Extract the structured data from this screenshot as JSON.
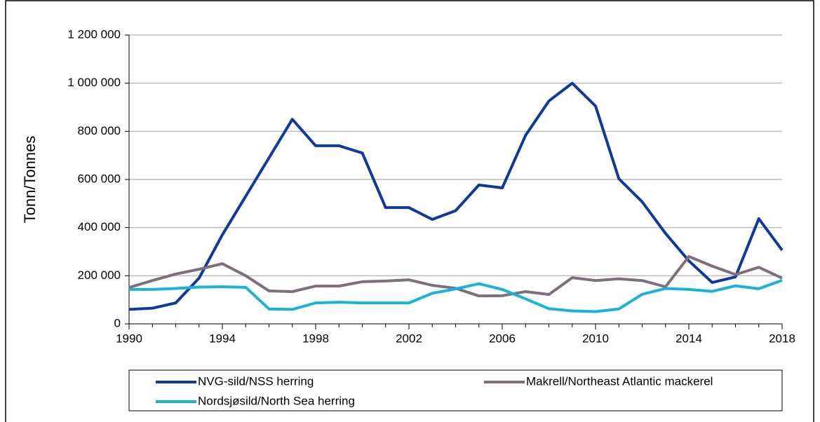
{
  "chart_data": {
    "type": "line",
    "y_label": "Tonn/Tonnes",
    "x": [
      1990,
      1991,
      1992,
      1993,
      1994,
      1995,
      1996,
      1997,
      1998,
      1999,
      2000,
      2001,
      2002,
      2003,
      2004,
      2005,
      2006,
      2007,
      2008,
      2009,
      2010,
      2011,
      2012,
      2013,
      2014,
      2015,
      2016,
      2017,
      2018
    ],
    "series": [
      {
        "name": "NVG-sild/NSS herring",
        "color": "#0f3a9c",
        "values": [
          60000,
          65000,
          87000,
          190000,
          370000,
          530000,
          690000,
          850000,
          740000,
          740000,
          710000,
          483000,
          483000,
          434000,
          470000,
          577000,
          565000,
          783000,
          926000,
          1000000,
          905000,
          603000,
          507000,
          376000,
          262000,
          172000,
          195000,
          437000,
          306000
        ]
      },
      {
        "name": "Makrell/Northeast Atlantic mackerel",
        "color": "#7d6f7c",
        "values": [
          151000,
          180000,
          207000,
          227000,
          250000,
          200000,
          137000,
          134000,
          157000,
          157000,
          175000,
          178000,
          183000,
          160000,
          148000,
          116000,
          117000,
          134000,
          122000,
          192000,
          180000,
          187000,
          180000,
          154000,
          280000,
          240000,
          205000,
          235000,
          190000
        ]
      },
      {
        "name": "Nordsjøsild/North Sea herring",
        "color": "#1ab2d8",
        "values": [
          143000,
          143000,
          147000,
          153000,
          154000,
          152000,
          62000,
          60000,
          87000,
          90000,
          87000,
          87000,
          87000,
          127000,
          145000,
          167000,
          143000,
          104000,
          63000,
          54000,
          51000,
          62000,
          123000,
          147000,
          143000,
          135000,
          158000,
          146000,
          181000
        ]
      }
    ],
    "xlim": [
      1990,
      2018
    ],
    "xticks": [
      1990,
      1994,
      1998,
      2002,
      2006,
      2010,
      2014,
      2018
    ],
    "ylim": [
      0,
      1200000
    ],
    "yticks": [
      0,
      {
        "value": 200000,
        "label": "200 000"
      },
      {
        "value": 400000,
        "label": "400 000"
      },
      {
        "value": 600000,
        "label": "600 000"
      },
      {
        "value": 800000,
        "label": "800 000"
      },
      {
        "value": 1000000,
        "label": "1 000 000"
      },
      {
        "value": 1200000,
        "label": "1 200 000"
      }
    ],
    "grid": true
  }
}
